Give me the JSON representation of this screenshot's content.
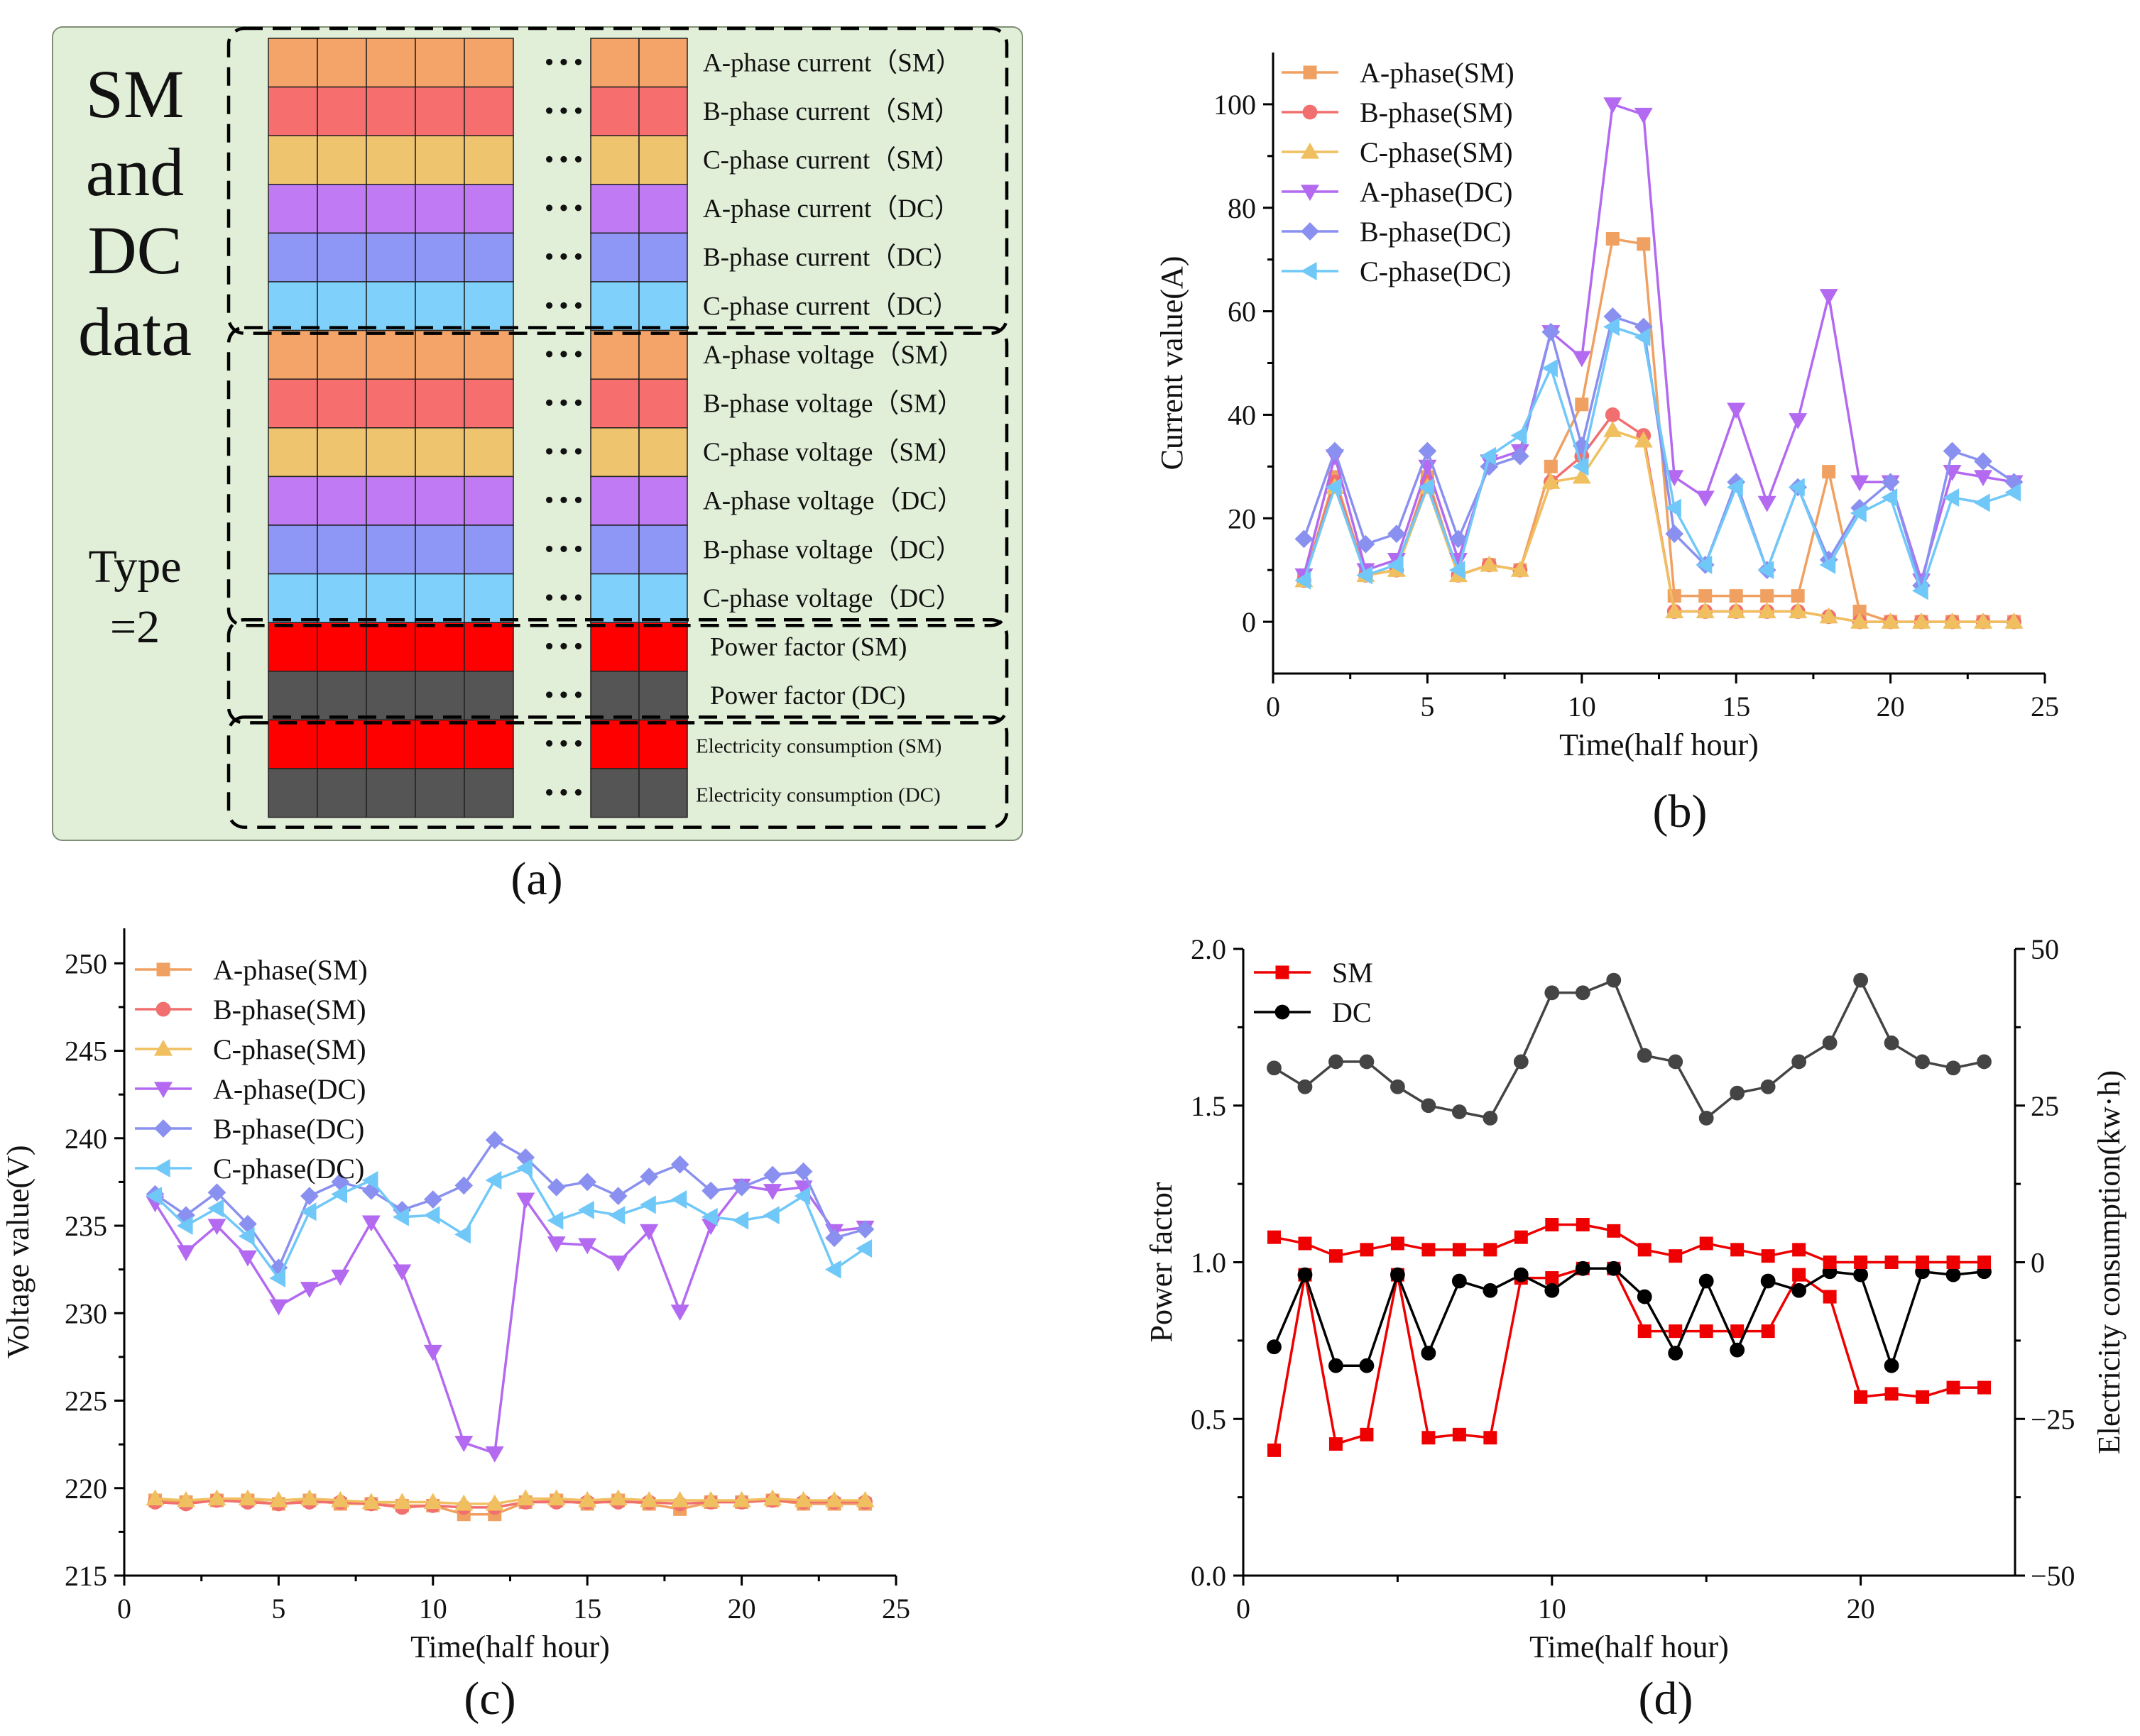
{
  "panel_a": {
    "caption": "(a)",
    "side_title": [
      "SM",
      "and",
      "DC",
      "data"
    ],
    "type_label": [
      "Type",
      "=2"
    ],
    "ellipsis": "• • •",
    "groups": [
      {
        "rows": [
          {
            "label": "A-phase current（SM）",
            "color": "#F4A468"
          },
          {
            "label": "B-phase current（SM）",
            "color": "#F76E6E"
          },
          {
            "label": "C-phase current（SM）",
            "color": "#EEC46E"
          },
          {
            "label": "A-phase current（DC）",
            "color": "#BF7AF4"
          },
          {
            "label": "B-phase current（DC）",
            "color": "#8E96F6"
          },
          {
            "label": "C-phase current（DC）",
            "color": "#7FD0FB"
          }
        ]
      },
      {
        "rows": [
          {
            "label": "A-phase voltage（SM）",
            "color": "#F4A468"
          },
          {
            "label": "B-phase voltage（SM）",
            "color": "#F76E6E"
          },
          {
            "label": "C-phase voltage（SM）",
            "color": "#EEC46E"
          },
          {
            "label": "A-phase voltage（DC）",
            "color": "#BF7AF4"
          },
          {
            "label": "B-phase voltage（DC）",
            "color": "#8E96F6"
          },
          {
            "label": "C-phase voltage（DC）",
            "color": "#7FD0FB"
          }
        ]
      },
      {
        "rows": [
          {
            "label": "Power factor (SM)",
            "color": "#FF0000"
          },
          {
            "label": "Power factor (DC)",
            "color": "#555555"
          }
        ]
      },
      {
        "rows": [
          {
            "label": "Electricity consumption (SM)",
            "color": "#FF0000"
          },
          {
            "label": "Electricity consumption (DC)",
            "color": "#555555"
          }
        ]
      }
    ]
  },
  "chart_data": [
    {
      "id": "b",
      "type": "line",
      "caption": "(b)",
      "xlabel": "Time(half hour)",
      "ylabel": "Current value(A)",
      "xlim": [
        0,
        25
      ],
      "ylim": [
        -10,
        110
      ],
      "xticks": [
        0,
        5,
        10,
        15,
        20,
        25
      ],
      "yticks": [
        0,
        20,
        40,
        60,
        80,
        100
      ],
      "legend_position": "top-left",
      "x": [
        1,
        2,
        3,
        4,
        5,
        6,
        7,
        8,
        9,
        10,
        11,
        12,
        13,
        14,
        15,
        16,
        17,
        18,
        19,
        20,
        21,
        22,
        23,
        24
      ],
      "series": [
        {
          "name": "A-phase(SM)",
          "color": "#F0A060",
          "marker": "square",
          "values": [
            8,
            28,
            9,
            10,
            28,
            9,
            11,
            10,
            30,
            42,
            74,
            73,
            5,
            5,
            5,
            5,
            5,
            29,
            2,
            0,
            0,
            0,
            0,
            0
          ]
        },
        {
          "name": "B-phase(SM)",
          "color": "#F26F6F",
          "marker": "circle",
          "values": [
            8,
            27,
            9,
            10,
            27,
            9,
            11,
            10,
            27,
            32,
            40,
            36,
            2,
            2,
            2,
            2,
            2,
            1,
            0,
            0,
            0,
            0,
            0,
            0
          ]
        },
        {
          "name": "C-phase(SM)",
          "color": "#F0C060",
          "marker": "triangle-up",
          "values": [
            8,
            26,
            9,
            10,
            26,
            9,
            11,
            10,
            27,
            28,
            37,
            35,
            2,
            2,
            2,
            2,
            2,
            1,
            0,
            0,
            0,
            0,
            0,
            0
          ]
        },
        {
          "name": "A-phase(DC)",
          "color": "#B36AF0",
          "marker": "triangle-down",
          "values": [
            9,
            32,
            10,
            12,
            30,
            12,
            31,
            33,
            56,
            51,
            100,
            98,
            28,
            24,
            41,
            23,
            39,
            63,
            27,
            27,
            8,
            29,
            28,
            27
          ]
        },
        {
          "name": "B-phase(DC)",
          "color": "#8A90F0",
          "marker": "diamond",
          "values": [
            16,
            33,
            15,
            17,
            33,
            16,
            30,
            32,
            56,
            34,
            59,
            57,
            17,
            11,
            27,
            10,
            26,
            12,
            22,
            27,
            7,
            33,
            31,
            27
          ]
        },
        {
          "name": "C-phase(DC)",
          "color": "#70C8F8",
          "marker": "triangle-left",
          "values": [
            8,
            26,
            9,
            11,
            26,
            10,
            32,
            36,
            49,
            30,
            57,
            55,
            22,
            11,
            26,
            10,
            26,
            11,
            21,
            24,
            6,
            24,
            23,
            25
          ]
        }
      ]
    },
    {
      "id": "c",
      "type": "line",
      "caption": "(c)",
      "xlabel": "Time(half hour)",
      "ylabel": "Voltage value(V)",
      "xlim": [
        0,
        25
      ],
      "ylim": [
        215,
        252
      ],
      "xticks": [
        0,
        5,
        10,
        15,
        20,
        25
      ],
      "yticks": [
        215,
        220,
        225,
        230,
        235,
        240,
        245,
        250
      ],
      "legend_position": "top-left",
      "x": [
        1,
        2,
        3,
        4,
        5,
        6,
        7,
        8,
        9,
        10,
        11,
        12,
        13,
        14,
        15,
        16,
        17,
        18,
        19,
        20,
        21,
        22,
        23,
        24
      ],
      "series": [
        {
          "name": "A-phase(SM)",
          "color": "#F0A060",
          "marker": "square",
          "values": [
            219.3,
            219.2,
            219.3,
            219.3,
            219.1,
            219.3,
            219.1,
            219.1,
            219.0,
            219.0,
            218.5,
            218.5,
            219.2,
            219.3,
            219.1,
            219.3,
            219.1,
            218.8,
            219.2,
            219.2,
            219.3,
            219.1,
            219.1,
            219.1
          ]
        },
        {
          "name": "B-phase(SM)",
          "color": "#F26F6F",
          "marker": "circle",
          "values": [
            219.2,
            219.1,
            219.3,
            219.2,
            219.1,
            219.2,
            219.2,
            219.1,
            218.9,
            219.0,
            218.9,
            218.9,
            219.2,
            219.2,
            219.2,
            219.2,
            219.2,
            219.1,
            219.2,
            219.2,
            219.3,
            219.2,
            219.2,
            219.2
          ]
        },
        {
          "name": "C-phase(SM)",
          "color": "#F0C060",
          "marker": "triangle-up",
          "values": [
            219.4,
            219.3,
            219.4,
            219.4,
            219.3,
            219.4,
            219.3,
            219.2,
            219.2,
            219.2,
            219.1,
            219.1,
            219.4,
            219.4,
            219.3,
            219.4,
            219.3,
            219.3,
            219.3,
            219.3,
            219.4,
            219.3,
            219.3,
            219.3
          ]
        },
        {
          "name": "A-phase(DC)",
          "color": "#B36AF0",
          "marker": "triangle-down",
          "values": [
            236.3,
            233.5,
            235.0,
            233.2,
            230.4,
            231.4,
            232.1,
            235.2,
            232.4,
            227.8,
            222.6,
            222.0,
            236.5,
            234.0,
            233.9,
            232.9,
            234.7,
            230.1,
            235.0,
            237.3,
            237.0,
            237.2,
            234.7,
            234.9
          ]
        },
        {
          "name": "B-phase(DC)",
          "color": "#8A90F0",
          "marker": "diamond",
          "values": [
            236.8,
            235.6,
            236.9,
            235.1,
            232.6,
            236.7,
            237.5,
            237.0,
            235.9,
            236.5,
            237.3,
            239.9,
            238.9,
            237.2,
            237.5,
            236.7,
            237.8,
            238.5,
            237.0,
            237.2,
            237.9,
            238.1,
            234.3,
            234.8
          ]
        },
        {
          "name": "C-phase(DC)",
          "color": "#70C8F8",
          "marker": "triangle-left",
          "values": [
            236.7,
            235.0,
            236.0,
            234.4,
            232.0,
            235.8,
            236.8,
            237.6,
            235.5,
            235.6,
            234.5,
            237.6,
            238.3,
            235.3,
            235.9,
            235.6,
            236.2,
            236.5,
            235.5,
            235.3,
            235.6,
            236.7,
            232.5,
            233.7
          ]
        }
      ]
    },
    {
      "id": "d",
      "type": "line",
      "caption": "(d)",
      "xlabel": "Time(half hour)",
      "ylabel": "Power factor",
      "ylabel_right": "Electricity consumption(kw·h)",
      "xlim": [
        0,
        25
      ],
      "ylim": [
        0,
        2.0
      ],
      "ylim_right": [
        -50,
        50
      ],
      "xticks": [
        0,
        10,
        20
      ],
      "xticks_minor": [
        5,
        15
      ],
      "yticks": [
        0.0,
        0.5,
        1.0,
        1.5,
        2.0
      ],
      "yticks_right": [
        -50,
        -25,
        0,
        25,
        50
      ],
      "legend_position": "top-left",
      "x": [
        1,
        2,
        3,
        4,
        5,
        6,
        7,
        8,
        9,
        10,
        11,
        12,
        13,
        14,
        15,
        16,
        17,
        18,
        19,
        20,
        21,
        22,
        23,
        24
      ],
      "series": [
        {
          "name": "SM",
          "color": "#EE0000",
          "marker": "square",
          "axis": "left",
          "values": [
            0.4,
            0.96,
            0.42,
            0.45,
            0.96,
            0.44,
            0.45,
            0.44,
            0.95,
            0.95,
            0.98,
            0.98,
            0.78,
            0.78,
            0.78,
            0.78,
            0.78,
            0.96,
            0.89,
            0.57,
            0.58,
            0.57,
            0.6,
            0.6
          ]
        },
        {
          "name": "DC",
          "color": "#000000",
          "marker": "circle",
          "axis": "left",
          "values": [
            0.73,
            0.96,
            0.67,
            0.67,
            0.96,
            0.71,
            0.94,
            0.91,
            0.96,
            0.91,
            0.98,
            0.98,
            0.89,
            0.71,
            0.94,
            0.72,
            0.94,
            0.91,
            0.97,
            0.96,
            0.67,
            0.97,
            0.96,
            0.97
          ]
        },
        {
          "name": "SM consumption",
          "color": "#EE0000",
          "marker": "square",
          "axis": "right",
          "in_legend": false,
          "values": [
            4,
            3,
            1,
            2,
            3,
            2,
            2,
            2,
            4,
            6,
            6,
            5,
            2,
            1,
            3,
            2,
            1,
            2,
            0,
            0,
            0,
            0,
            0,
            0
          ]
        },
        {
          "name": "DC consumption",
          "color": "#444444",
          "marker": "circle",
          "axis": "right",
          "in_legend": false,
          "values": [
            31,
            28,
            32,
            32,
            28,
            25,
            24,
            23,
            32,
            43,
            43,
            45,
            33,
            32,
            23,
            27,
            28,
            32,
            35,
            45,
            35,
            32,
            31,
            32
          ]
        }
      ]
    }
  ]
}
